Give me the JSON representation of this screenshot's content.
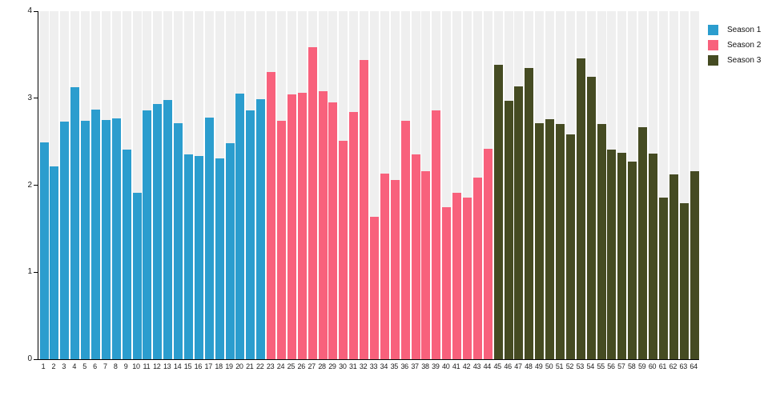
{
  "chart_data": {
    "type": "bar",
    "title": "",
    "xlabel": "",
    "ylabel": "",
    "ylim": [
      0,
      4
    ],
    "y_ticks": [
      0,
      1,
      2,
      3,
      4
    ],
    "grid": "column-bands",
    "band_color": "#efefef",
    "axis_color": "#010101",
    "legend_position": "top-right",
    "categories": [
      "1",
      "2",
      "3",
      "4",
      "5",
      "6",
      "7",
      "8",
      "9",
      "10",
      "11",
      "12",
      "13",
      "14",
      "15",
      "16",
      "17",
      "18",
      "19",
      "20",
      "21",
      "22",
      "23",
      "24",
      "25",
      "26",
      "27",
      "28",
      "29",
      "30",
      "31",
      "32",
      "33",
      "34",
      "35",
      "36",
      "37",
      "38",
      "39",
      "40",
      "41",
      "42",
      "43",
      "44",
      "45",
      "46",
      "47",
      "48",
      "49",
      "50",
      "51",
      "52",
      "53",
      "54",
      "55",
      "56",
      "57",
      "58",
      "59",
      "60",
      "61",
      "62",
      "63",
      "64"
    ],
    "series": [
      {
        "name": "Season 1",
        "color": "#2b9dce",
        "start": 1,
        "values": [
          2.49,
          2.22,
          2.73,
          3.13,
          2.74,
          2.87,
          2.75,
          2.77,
          2.41,
          1.91,
          2.86,
          2.93,
          2.98,
          2.71,
          2.35,
          2.34,
          2.78,
          2.31,
          2.48,
          3.05,
          2.86,
          2.99
        ]
      },
      {
        "name": "Season 2",
        "color": "#f8617c",
        "start": 23,
        "values": [
          3.3,
          2.74,
          3.04,
          3.06,
          3.59,
          3.08,
          2.95,
          2.51,
          2.84,
          3.44,
          1.64,
          2.13,
          2.06,
          2.74,
          2.35,
          2.16,
          2.86,
          1.75,
          1.91,
          1.86,
          2.09,
          2.42
        ]
      },
      {
        "name": "Season 3",
        "color": "#454b22",
        "start": 45,
        "values": [
          3.38,
          2.97,
          3.14,
          3.35,
          2.71,
          2.76,
          2.7,
          2.58,
          3.46,
          3.25,
          2.7,
          2.41,
          2.37,
          2.27,
          2.67,
          2.36,
          1.86,
          2.12,
          1.79,
          2.16
        ]
      }
    ]
  }
}
